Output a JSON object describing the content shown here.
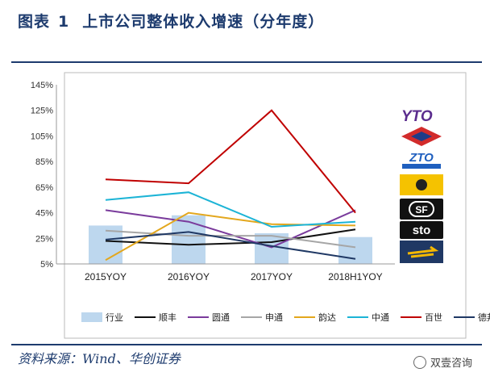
{
  "header": {
    "title_prefix": "图表",
    "title_num": "1",
    "title_text": "上市公司整体收入增速（分年度）"
  },
  "footer": {
    "source": "资料来源：Wind、华创证券",
    "watermark": "双壹咨询"
  },
  "logos": [
    "YTO",
    "",
    "ZTO",
    "",
    "SF",
    "sto",
    ""
  ],
  "chart_data": {
    "type": "line",
    "categories": [
      "2015YOY",
      "2016YOY",
      "2017YOY",
      "2018H1YOY"
    ],
    "ylim": [
      5,
      145
    ],
    "yticks": [
      "145%",
      "125%",
      "105%",
      "85%",
      "65%",
      "45%",
      "25%",
      "5%"
    ],
    "ytick_values": [
      145,
      125,
      105,
      85,
      65,
      45,
      25,
      5
    ],
    "bar_series": {
      "name": "行业",
      "values": [
        35,
        43,
        29,
        26
      ],
      "color": "#bdd7ee"
    },
    "series": [
      {
        "name": "顺丰",
        "values": [
          23,
          20,
          22,
          32
        ],
        "color": "#111111"
      },
      {
        "name": "圆通",
        "values": [
          47,
          38,
          18,
          47
        ],
        "color": "#7a3b9c"
      },
      {
        "name": "申通",
        "values": [
          31,
          27,
          27,
          18
        ],
        "color": "#a6a6a6"
      },
      {
        "name": "韵达",
        "values": [
          8,
          45,
          36,
          35
        ],
        "color": "#e3a71d"
      },
      {
        "name": "中通",
        "values": [
          55,
          61,
          34,
          38
        ],
        "color": "#1cb4d6"
      },
      {
        "name": "百世",
        "values": [
          71,
          68,
          125,
          45
        ],
        "color": "#c00000"
      },
      {
        "name": "德邦",
        "values": [
          24,
          30,
          19,
          9
        ],
        "color": "#1f3864"
      }
    ]
  }
}
